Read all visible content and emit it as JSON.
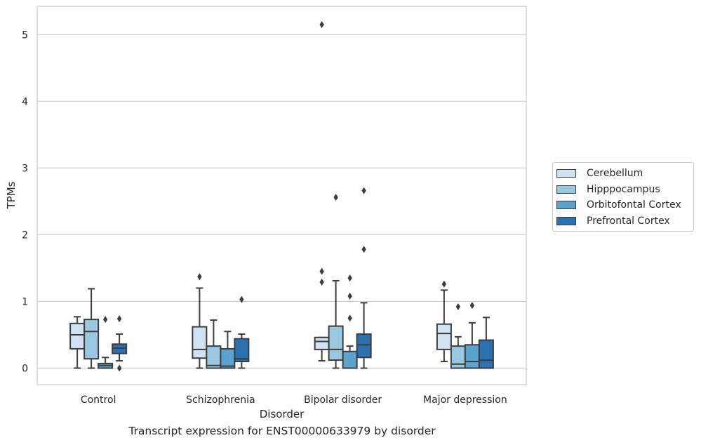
{
  "chart_data": {
    "type": "box",
    "caption": "Transcript expression for ENST00000633979 by disorder",
    "xlabel": "Disorder",
    "ylabel": "TPMs",
    "ylim": [
      -0.25,
      5.4
    ],
    "yticks": [
      0,
      1,
      2,
      3,
      4,
      5
    ],
    "grid": true,
    "legend_position": "right",
    "categories": [
      "Control",
      "Schizophrenia",
      "Bipolar disorder",
      "Major depression"
    ],
    "series": [
      {
        "name": "Cerebellum",
        "color": "#d0e1f2",
        "boxes": [
          {
            "whislo": 0.0,
            "q1": 0.29,
            "med": 0.5,
            "q3": 0.67,
            "whishi": 0.77,
            "fliers": []
          },
          {
            "whislo": 0.0,
            "q1": 0.15,
            "med": 0.28,
            "q3": 0.62,
            "whishi": 1.2,
            "fliers": [
              1.37
            ]
          },
          {
            "whislo": 0.11,
            "q1": 0.28,
            "med": 0.4,
            "q3": 0.46,
            "whishi": 0.46,
            "fliers": [
              1.45,
              1.29,
              5.15
            ]
          },
          {
            "whislo": 0.1,
            "q1": 0.28,
            "med": 0.52,
            "q3": 0.66,
            "whishi": 1.17,
            "fliers": [
              1.26
            ]
          }
        ]
      },
      {
        "name": "Hipppocampus",
        "color": "#9ac8e0",
        "boxes": [
          {
            "whislo": 0.0,
            "q1": 0.14,
            "med": 0.55,
            "q3": 0.73,
            "whishi": 1.19,
            "fliers": []
          },
          {
            "whislo": 0.0,
            "q1": 0.0,
            "med": 0.04,
            "q3": 0.33,
            "whishi": 0.72,
            "fliers": []
          },
          {
            "whislo": 0.0,
            "q1": 0.12,
            "med": 0.28,
            "q3": 0.63,
            "whishi": 1.31,
            "fliers": [
              2.56
            ]
          },
          {
            "whislo": 0.0,
            "q1": 0.0,
            "med": 0.06,
            "q3": 0.33,
            "whishi": 0.47,
            "fliers": [
              0.92
            ]
          }
        ]
      },
      {
        "name": "Orbitofontal Cortex",
        "color": "#5ba3cf",
        "boxes": [
          {
            "whislo": 0.0,
            "q1": 0.0,
            "med": 0.04,
            "q3": 0.07,
            "whishi": 0.16,
            "fliers": [
              0.73
            ]
          },
          {
            "whislo": 0.0,
            "q1": 0.0,
            "med": 0.03,
            "q3": 0.29,
            "whishi": 0.55,
            "fliers": []
          },
          {
            "whislo": 0.0,
            "q1": 0.0,
            "med": 0.0,
            "q3": 0.25,
            "whishi": 0.33,
            "fliers": [
              1.35,
              1.08,
              0.75
            ]
          },
          {
            "whislo": 0.0,
            "q1": 0.0,
            "med": 0.1,
            "q3": 0.35,
            "whishi": 0.68,
            "fliers": [
              0.94
            ]
          }
        ]
      },
      {
        "name": "Prefrontal Cortex",
        "color": "#2a71b1",
        "boxes": [
          {
            "whislo": 0.11,
            "q1": 0.22,
            "med": 0.3,
            "q3": 0.36,
            "whishi": 0.51,
            "fliers": [
              0.74,
              0.0
            ]
          },
          {
            "whislo": 0.0,
            "q1": 0.1,
            "med": 0.14,
            "q3": 0.44,
            "whishi": 0.51,
            "fliers": [
              1.03
            ]
          },
          {
            "whislo": 0.0,
            "q1": 0.16,
            "med": 0.35,
            "q3": 0.51,
            "whishi": 0.98,
            "fliers": [
              1.78,
              2.66
            ]
          },
          {
            "whislo": 0.0,
            "q1": 0.0,
            "med": 0.12,
            "q3": 0.42,
            "whishi": 0.76,
            "fliers": []
          }
        ]
      }
    ]
  }
}
